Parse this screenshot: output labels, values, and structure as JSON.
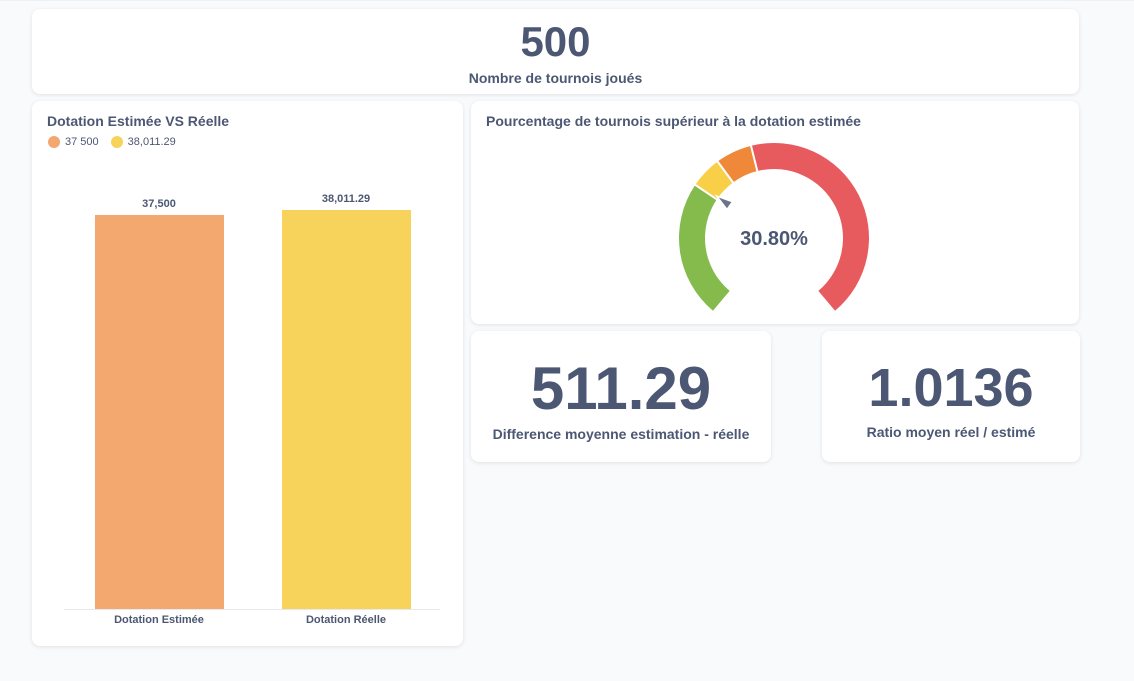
{
  "tournaments": {
    "value": "500",
    "label": "Nombre de tournois joués"
  },
  "bar_card": {
    "title": "Dotation Estimée VS Réelle",
    "legend": [
      {
        "label": "37 500",
        "color": "#f2a86f"
      },
      {
        "label": "38,011.29",
        "color": "#f7d35b"
      }
    ]
  },
  "chart_data": [
    {
      "type": "bar",
      "title": "Dotation Estimée VS Réelle",
      "categories": [
        "Dotation Estimée",
        "Dotation Réelle"
      ],
      "values": [
        37500,
        38011.29
      ],
      "value_labels": [
        "37,500",
        "38,011.29"
      ],
      "colors": [
        "#f2a86f",
        "#f7d35b"
      ],
      "ylim": [
        0,
        40000
      ],
      "grid": false,
      "legend": "top-left"
    },
    {
      "type": "gauge",
      "title": "Pourcentage de tournois supérieur à la dotation estimée",
      "value": 30.8,
      "value_label": "30.80%",
      "range": [
        0,
        100
      ],
      "segments": [
        {
          "from": 0,
          "to": 30,
          "color": "#84bb4c"
        },
        {
          "from": 30,
          "to": 37,
          "color": "#f9cf48"
        },
        {
          "from": 37,
          "to": 45,
          "color": "#f0883a"
        },
        {
          "from": 45,
          "to": 100,
          "color": "#e75b5e"
        }
      ]
    }
  ],
  "gauge_card": {
    "title": "Pourcentage de tournois supérieur à la dotation estimée",
    "value_label": "30.80%"
  },
  "diff": {
    "value": "511.29",
    "label": "Difference moyenne estimation - réelle"
  },
  "ratio": {
    "value": "1.0136",
    "label": "Ratio moyen réel / estimé"
  }
}
